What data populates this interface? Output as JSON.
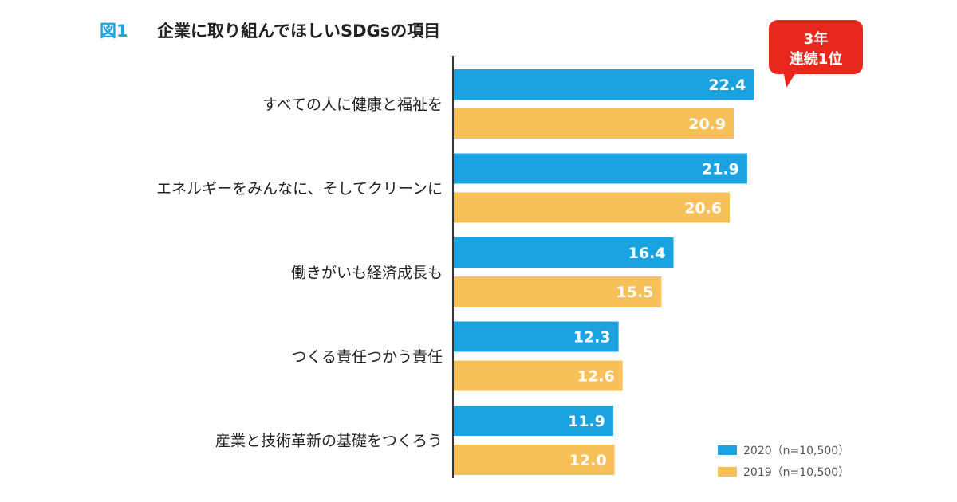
{
  "title": {
    "figure_label": "図1",
    "text": "企業に取り組んでほしいSDGsの項目"
  },
  "badge": {
    "line1": "3年",
    "line2": "連続1位"
  },
  "colors": {
    "series_2020": "#1aa3e0",
    "series_2019": "#f8c058",
    "figure_label": "#1aa3e0",
    "badge": "#e8281c",
    "axis": "#333333"
  },
  "chart_data": {
    "type": "bar",
    "orientation": "horizontal",
    "categories": [
      "すべての人に健康と福祉を",
      "エネルギーをみんなに、そしてクリーンに",
      "働きがいも経済成長も",
      "つくる責任つかう責任",
      "産業と技術革新の基礎をつくろう"
    ],
    "series": [
      {
        "name": "2020（n=10,500）",
        "values": [
          22.4,
          21.9,
          16.4,
          12.3,
          11.9
        ],
        "labels": [
          "22.4",
          "21.9",
          "16.4",
          "12.3",
          "11.9"
        ]
      },
      {
        "name": "2019（n=10,500）",
        "values": [
          20.9,
          20.6,
          15.5,
          12.6,
          12.0
        ],
        "labels": [
          "20.9",
          "20.6",
          "15.5",
          "12.6",
          "12.0"
        ]
      }
    ],
    "xlim": [
      0,
      26
    ],
    "grid": false,
    "legend_position": "bottom-right"
  }
}
